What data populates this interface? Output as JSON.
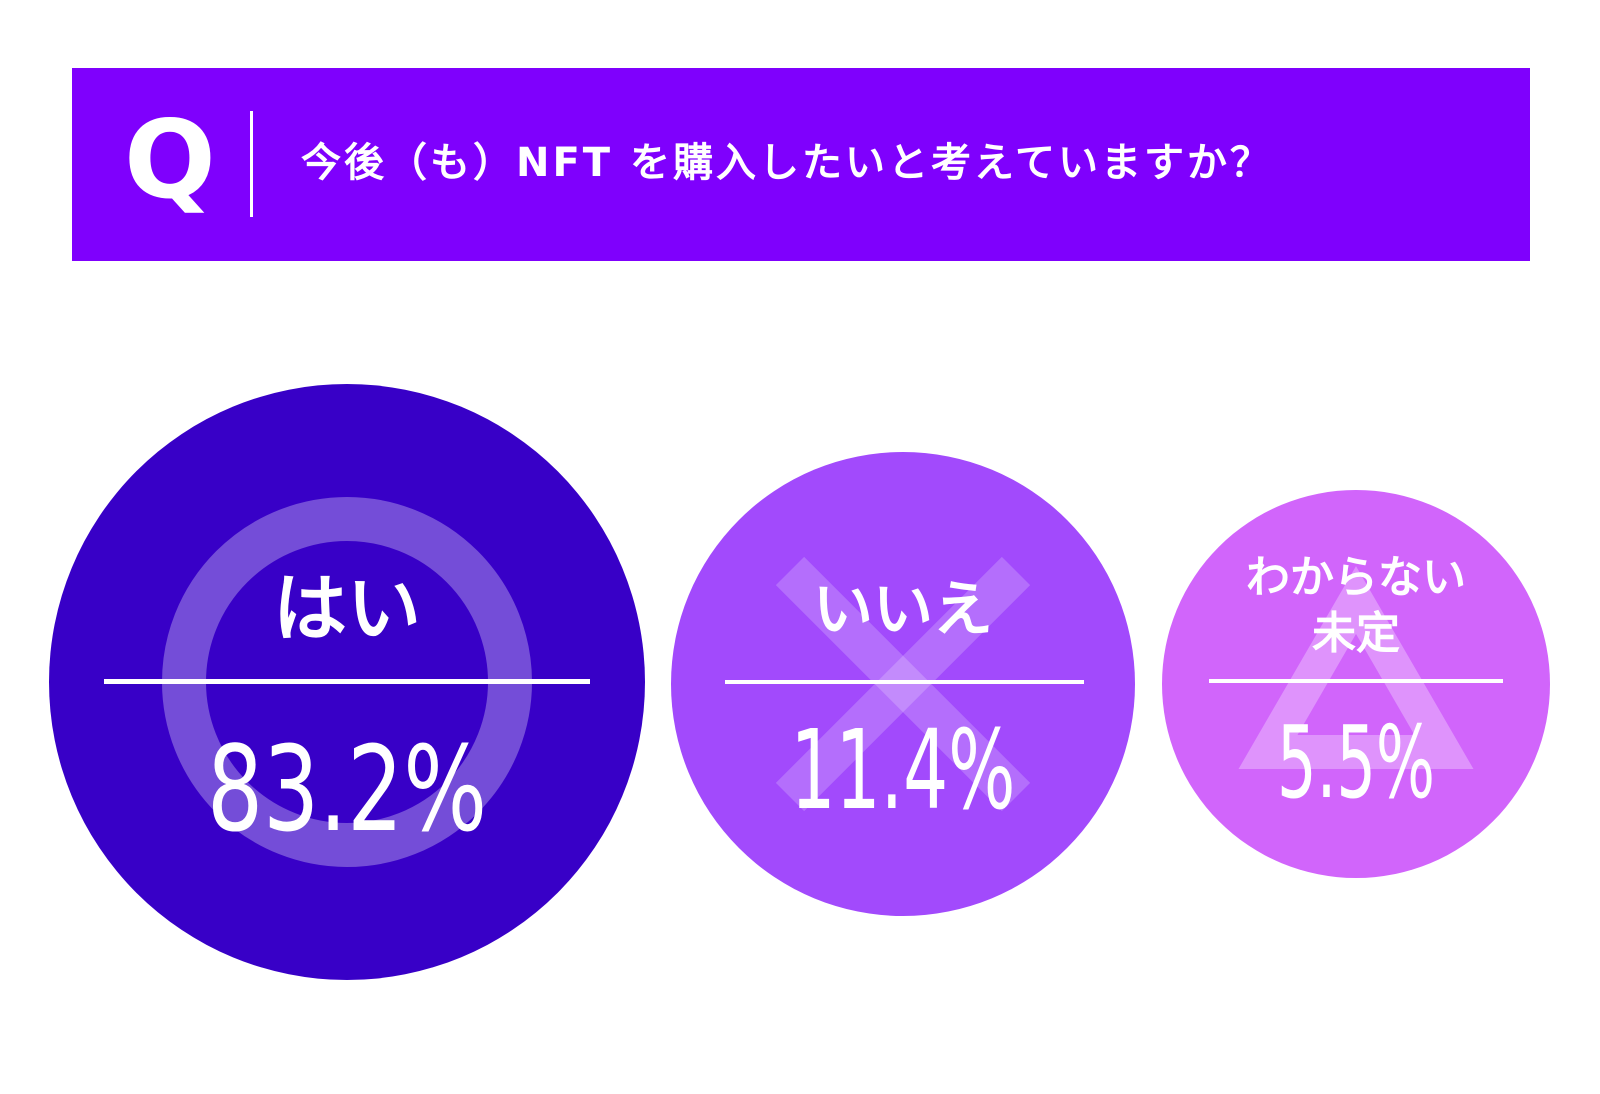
{
  "header": {
    "q_label": "Q",
    "question": "今後（も）NFT を購入したいと考えていますか？"
  },
  "chart_data": {
    "type": "bubble",
    "title": "今後（も）NFT を購入したいと考えていますか？",
    "categories": [
      "はい",
      "いいえ",
      "わからない 未定"
    ],
    "values": [
      83.2,
      11.4,
      5.5
    ],
    "unit": "%",
    "items": [
      {
        "label": "はい",
        "value": 83.2,
        "display": "83.2%",
        "symbol": "circle",
        "color": "#3800c7"
      },
      {
        "label": "いいえ",
        "value": 11.4,
        "display": "11.4%",
        "symbol": "cross",
        "color": "#a24afc"
      },
      {
        "label": "わからない",
        "label2": "未定",
        "value": 5.5,
        "display": "5.5%",
        "symbol": "triangle",
        "color": "#d165fb"
      }
    ]
  },
  "colors": {
    "header_bg": "#7f00fd",
    "text": "#ffffff"
  }
}
